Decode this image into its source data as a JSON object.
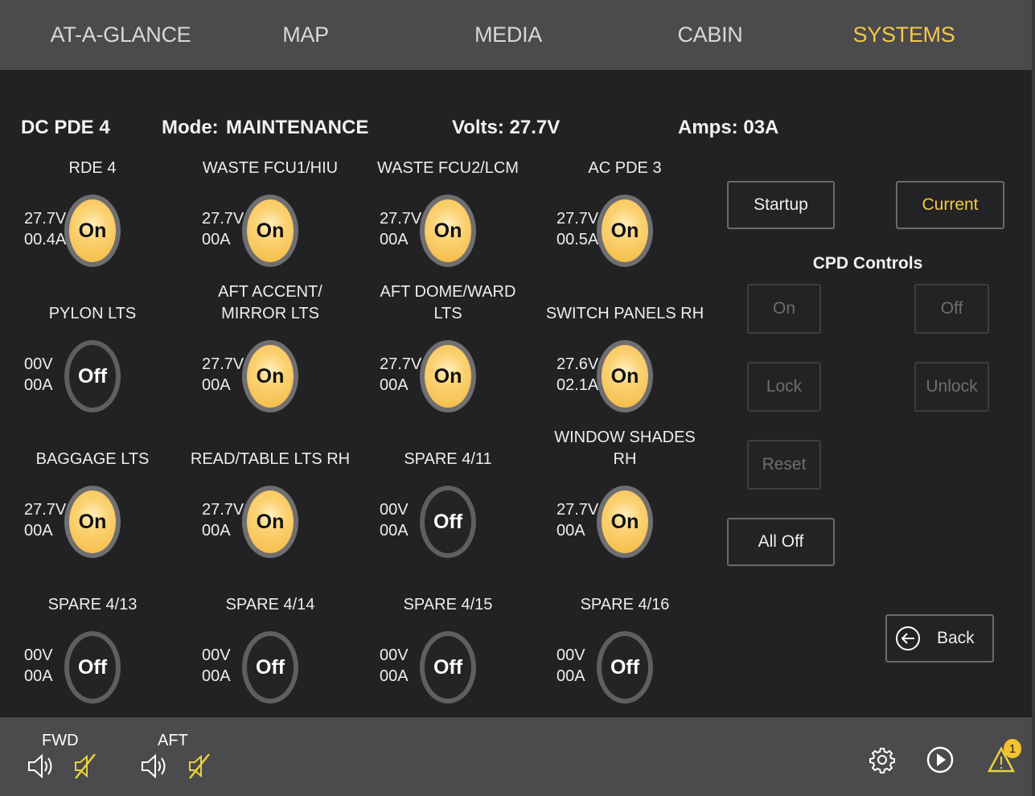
{
  "tabs": [
    {
      "label": "AT-A-GLANCE"
    },
    {
      "label": "MAP"
    },
    {
      "label": "MEDIA"
    },
    {
      "label": "CABIN"
    },
    {
      "label": "SYSTEMS",
      "active": true
    }
  ],
  "info": {
    "device": "DC PDE 4",
    "mode_label": "Mode:",
    "mode": "MAINTENANCE",
    "volts": "Volts: 27.7V",
    "amps": "Amps: 03A"
  },
  "breakers": [
    {
      "label": "RDE 4",
      "volts": "27.7V",
      "amps": "00.4A",
      "state": "On"
    },
    {
      "label": "WASTE FCU1/HIU",
      "volts": "27.7V",
      "amps": "00A",
      "state": "On"
    },
    {
      "label": "WASTE FCU2/LCM",
      "volts": "27.7V",
      "amps": "00A",
      "state": "On"
    },
    {
      "label": "AC PDE 3",
      "volts": "27.7V",
      "amps": "00.5A",
      "state": "On"
    },
    {
      "label": "PYLON LTS",
      "volts": "00V",
      "amps": "00A",
      "state": "Off"
    },
    {
      "label": "AFT ACCENT/\nMIRROR LTS",
      "volts": "27.7V",
      "amps": "00A",
      "state": "On"
    },
    {
      "label": "AFT DOME/WARD\nLTS",
      "volts": "27.7V",
      "amps": "00A",
      "state": "On"
    },
    {
      "label": "SWITCH PANELS RH",
      "volts": "27.6V",
      "amps": "02.1A",
      "state": "On"
    },
    {
      "label": "BAGGAGE LTS",
      "volts": "27.7V",
      "amps": "00A",
      "state": "On"
    },
    {
      "label": "READ/TABLE LTS RH",
      "volts": "27.7V",
      "amps": "00A",
      "state": "On"
    },
    {
      "label": "SPARE 4/11",
      "volts": "00V",
      "amps": "00A",
      "state": "Off"
    },
    {
      "label": "WINDOW SHADES\nRH",
      "volts": "27.7V",
      "amps": "00A",
      "state": "On"
    },
    {
      "label": "SPARE 4/13",
      "volts": "00V",
      "amps": "00A",
      "state": "Off"
    },
    {
      "label": "SPARE 4/14",
      "volts": "00V",
      "amps": "00A",
      "state": "Off"
    },
    {
      "label": "SPARE 4/15",
      "volts": "00V",
      "amps": "00A",
      "state": "Off"
    },
    {
      "label": "SPARE 4/16",
      "volts": "00V",
      "amps": "00A",
      "state": "Off"
    }
  ],
  "controls": {
    "startup": "Startup",
    "current": "Current",
    "cpd_title": "CPD Controls",
    "on": "On",
    "off": "Off",
    "lock": "Lock",
    "unlock": "Unlock",
    "reset": "Reset",
    "all_off": "All Off",
    "back": "Back"
  },
  "footer": {
    "fwd": "FWD",
    "aft": "AFT",
    "alert_count": "1"
  },
  "colors": {
    "accent": "#f3c945",
    "on_fill": "#f8c550"
  }
}
